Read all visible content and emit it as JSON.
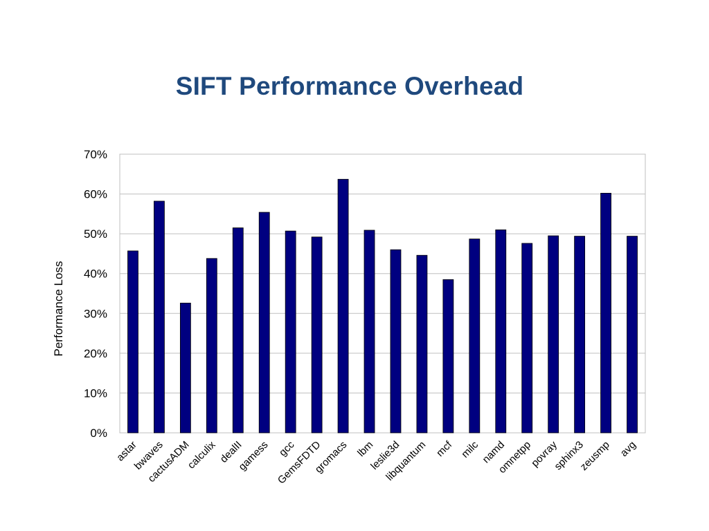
{
  "slide": {
    "title": "SIFT Performance Overhead"
  },
  "colors": {
    "title": "#1f497d",
    "bar_fill": "#000080",
    "gridline": "#bfbfbf",
    "plot_border": "#bfbfbf"
  },
  "chart_data": {
    "type": "bar",
    "title": "SIFT Performance Overhead",
    "xlabel": "",
    "ylabel": "Performance Loss",
    "ylim": [
      0,
      0.7
    ],
    "yticks": [
      0,
      0.1,
      0.2,
      0.3,
      0.4,
      0.5,
      0.6,
      0.7
    ],
    "ytick_labels": [
      "0%",
      "10%",
      "20%",
      "30%",
      "40%",
      "50%",
      "60%",
      "70%"
    ],
    "grid": true,
    "legend": "none",
    "categories": [
      "astar",
      "bwaves",
      "cactusADM",
      "calculix",
      "dealII",
      "gamess",
      "gcc",
      "GemsFDTD",
      "gromacs",
      "lbm",
      "leslie3d",
      "libquantum",
      "mcf",
      "milc",
      "namd",
      "omnetpp",
      "povray",
      "sphinx3",
      "zeusmp",
      "avg"
    ],
    "values": [
      0.457,
      0.582,
      0.326,
      0.438,
      0.515,
      0.554,
      0.507,
      0.492,
      0.637,
      0.509,
      0.46,
      0.446,
      0.385,
      0.487,
      0.51,
      0.476,
      0.495,
      0.494,
      0.602,
      0.494
    ]
  }
}
